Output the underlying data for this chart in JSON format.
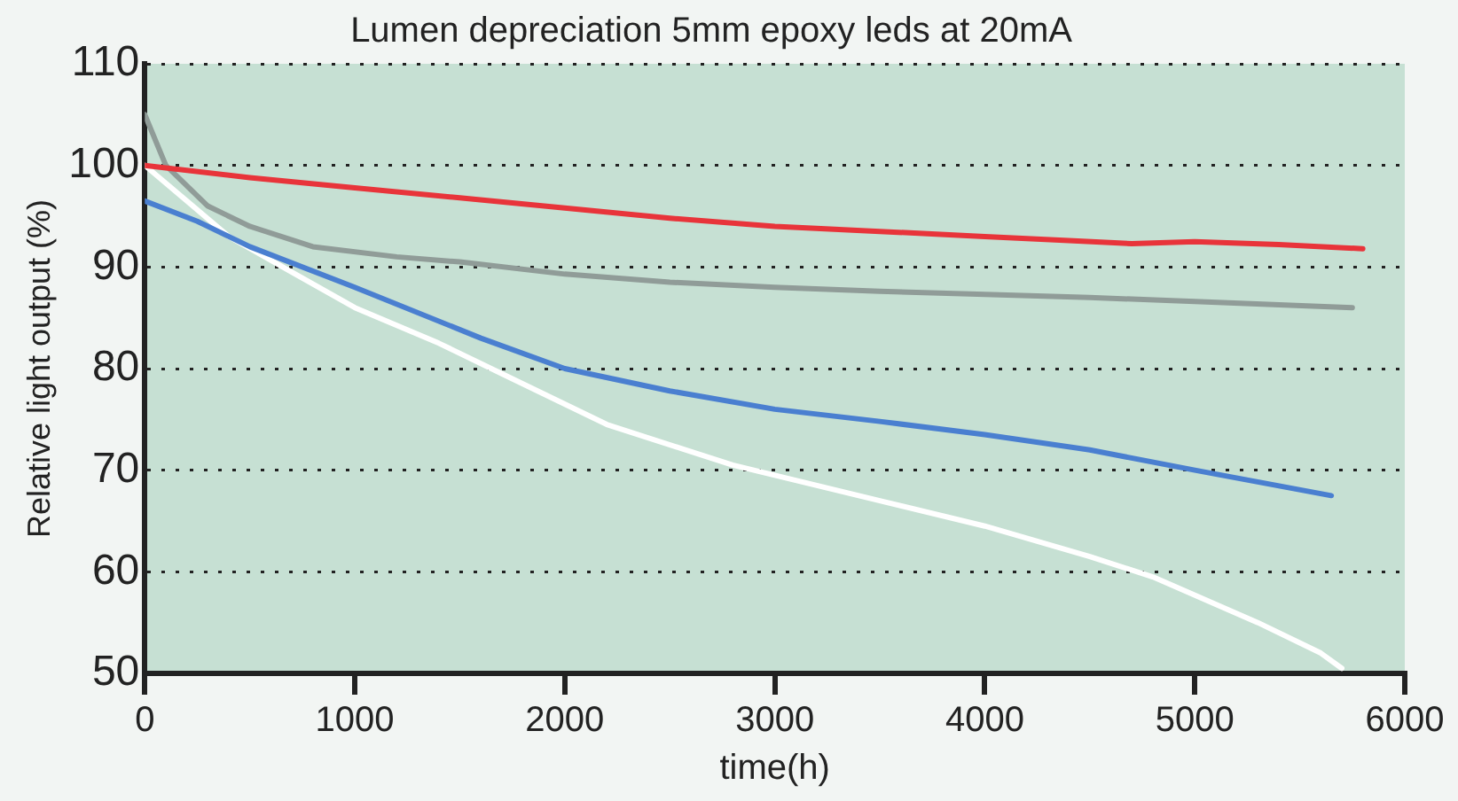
{
  "chart_data": {
    "type": "line",
    "title": "Lumen depreciation 5mm epoxy leds at 20mA",
    "xlabel": "time(h)",
    "ylabel": "Relative light output (%)",
    "xlim": [
      0,
      6000
    ],
    "xticks": [
      0,
      1000,
      2000,
      3000,
      4000,
      5000,
      6000
    ],
    "ylim": [
      50,
      110
    ],
    "yticks": [
      50,
      60,
      70,
      80,
      90,
      100,
      110
    ],
    "grid": "y",
    "line_style": "solid",
    "marker": "none",
    "legend": false,
    "series": [
      {
        "color": "#e8343a",
        "x": [
          0,
          500,
          1000,
          1500,
          2000,
          2500,
          3000,
          3500,
          4000,
          4400,
          4700,
          5000,
          5400,
          5800
        ],
        "values": [
          100,
          98.8,
          97.8,
          96.8,
          95.8,
          94.8,
          94,
          93.5,
          93,
          92.6,
          92.3,
          92.5,
          92.2,
          91.8
        ]
      },
      {
        "color": "#909c98",
        "x": [
          0,
          100,
          300,
          500,
          800,
          1200,
          1500,
          2000,
          2500,
          3000,
          3500,
          4000,
          4500,
          5000,
          5750
        ],
        "values": [
          105,
          100,
          96,
          94,
          92,
          91,
          90.5,
          89.3,
          88.5,
          88,
          87.6,
          87.3,
          87,
          86.6,
          86
        ]
      },
      {
        "color": "#4a7fd0",
        "x": [
          0,
          250,
          500,
          1000,
          1600,
          2000,
          2500,
          3000,
          3500,
          4000,
          4500,
          5000,
          5650
        ],
        "values": [
          96.5,
          94.5,
          92,
          88,
          83,
          80,
          77.8,
          76,
          74.8,
          73.5,
          72,
          70,
          67.5
        ]
      },
      {
        "color": "#ffffff",
        "x": [
          0,
          200,
          400,
          700,
          1000,
          1400,
          1700,
          2200,
          2800,
          3500,
          4000,
          4500,
          4800,
          5300,
          5600,
          5700
        ],
        "values": [
          100,
          96.5,
          93,
          89.5,
          86,
          82.5,
          79.5,
          74.5,
          70.5,
          67,
          64.5,
          61.5,
          59.5,
          55,
          52,
          50.5
        ]
      }
    ]
  }
}
